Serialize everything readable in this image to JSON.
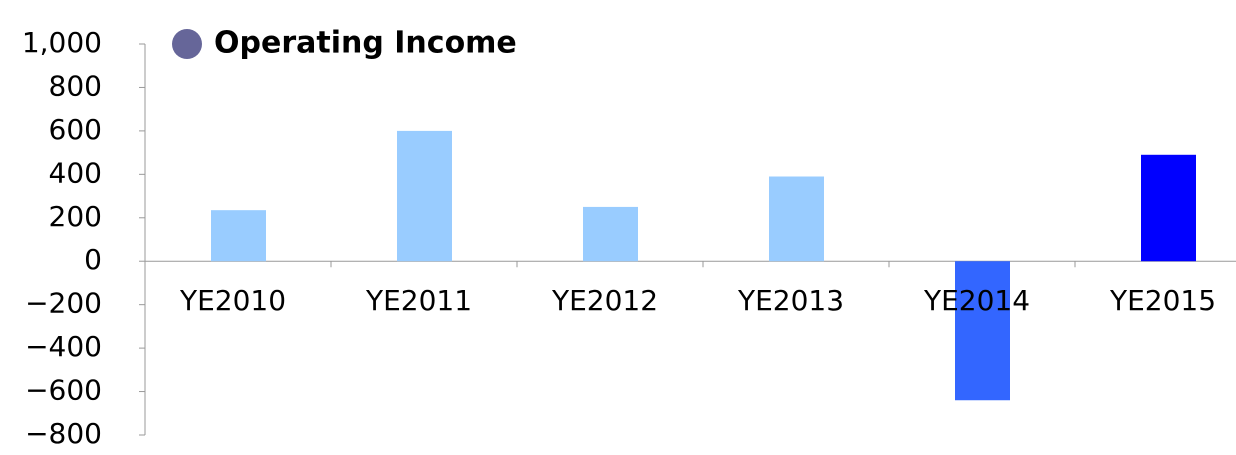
{
  "chart_data": {
    "type": "bar",
    "categories": [
      "YE2010",
      "YE2011",
      "YE2012",
      "YE2013",
      "YE2014",
      "YE2015"
    ],
    "series": [
      {
        "name": "Operating Income",
        "color": "#666699",
        "values": [
          235,
          600,
          250,
          390,
          -640,
          490
        ],
        "colors": [
          "#99ccff",
          "#99ccff",
          "#99ccff",
          "#99ccff",
          "#3366ff",
          "#0000ff"
        ]
      }
    ],
    "ylim": [
      -800,
      1000
    ],
    "yticks": [
      {
        "value": -800,
        "label": "−800"
      },
      {
        "value": -600,
        "label": "−600"
      },
      {
        "value": -400,
        "label": "−400"
      },
      {
        "value": -200,
        "label": "−200"
      },
      0,
      200,
      400,
      600,
      800,
      {
        "value": 1000,
        "label": "1,000"
      }
    ],
    "grid": false
  }
}
